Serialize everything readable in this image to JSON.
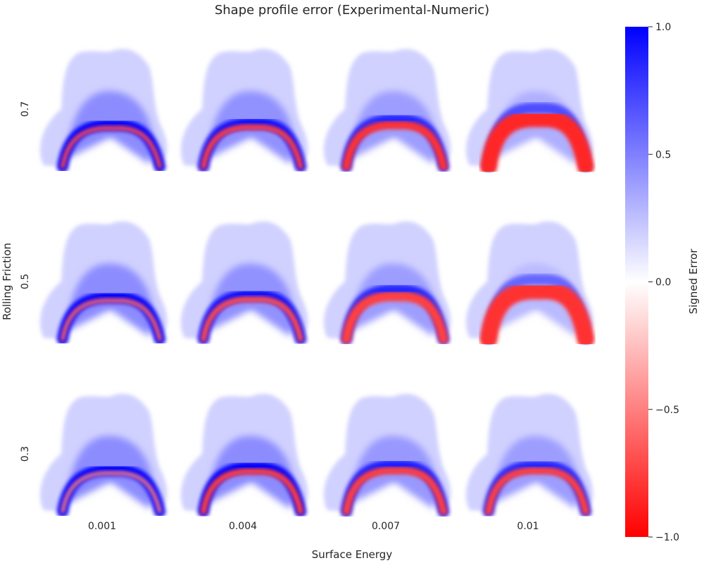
{
  "chart_data": {
    "type": "heatmap",
    "title": "Shape profile error (Experimental-Numeric)",
    "xlabel": "Surface Energy",
    "ylabel": "Rolling Friction",
    "columns": [
      "0.001",
      "0.004",
      "0.007",
      "0.01"
    ],
    "rows": [
      "0.7",
      "0.5",
      "0.3"
    ],
    "colorbar": {
      "label": "Signed Error",
      "range": [
        -1.0,
        1.0
      ],
      "ticks": [
        "1.0",
        "0.5",
        "0.0",
        "−0.5",
        "−1.0"
      ],
      "colors": {
        "negative": "#ff0000",
        "zero": "#ffffff",
        "positive": "#0000ff"
      }
    },
    "panels": [
      {
        "rolling_friction": 0.7,
        "surface_energy": 0.001,
        "peak_positive": 1.0,
        "peak_negative": -0.7,
        "negative_band": 0.1
      },
      {
        "rolling_friction": 0.7,
        "surface_energy": 0.004,
        "peak_positive": 0.95,
        "peak_negative": -0.75,
        "negative_band": 0.18
      },
      {
        "rolling_friction": 0.7,
        "surface_energy": 0.007,
        "peak_positive": 0.85,
        "peak_negative": -0.8,
        "negative_band": 0.35
      },
      {
        "rolling_friction": 0.7,
        "surface_energy": 0.01,
        "peak_positive": 0.7,
        "peak_negative": -0.85,
        "negative_band": 0.9
      },
      {
        "rolling_friction": 0.5,
        "surface_energy": 0.001,
        "peak_positive": 1.0,
        "peak_negative": -0.6,
        "negative_band": 0.1
      },
      {
        "rolling_friction": 0.5,
        "surface_energy": 0.004,
        "peak_positive": 0.95,
        "peak_negative": -0.7,
        "negative_band": 0.2
      },
      {
        "rolling_friction": 0.5,
        "surface_energy": 0.007,
        "peak_positive": 0.85,
        "peak_negative": -0.75,
        "negative_band": 0.45
      },
      {
        "rolling_friction": 0.5,
        "surface_energy": 0.01,
        "peak_positive": 0.6,
        "peak_negative": -0.8,
        "negative_band": 0.95
      },
      {
        "rolling_friction": 0.3,
        "surface_energy": 0.001,
        "peak_positive": 1.0,
        "peak_negative": -0.5,
        "negative_band": 0.08
      },
      {
        "rolling_friction": 0.3,
        "surface_energy": 0.004,
        "peak_positive": 1.0,
        "peak_negative": -0.75,
        "negative_band": 0.22
      },
      {
        "rolling_friction": 0.3,
        "surface_energy": 0.007,
        "peak_positive": 0.9,
        "peak_negative": -0.75,
        "negative_band": 0.3
      },
      {
        "rolling_friction": 0.3,
        "surface_energy": 0.01,
        "peak_positive": 0.85,
        "peak_negative": -0.75,
        "negative_band": 0.28
      }
    ]
  }
}
